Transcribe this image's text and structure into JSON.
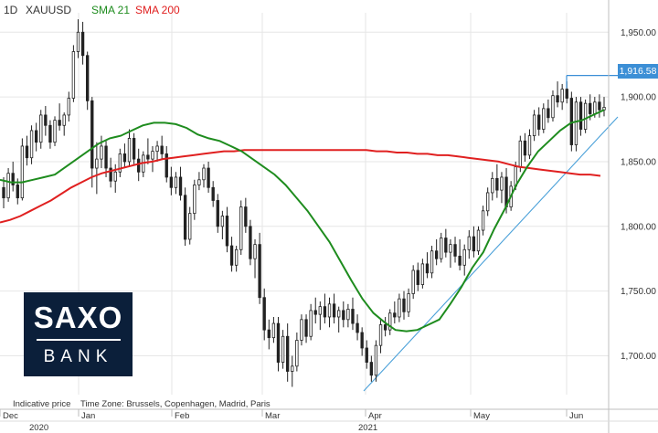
{
  "chart_data": {
    "type": "candlestick",
    "timeframe": "1D",
    "symbol": "XAUUSD",
    "indicators": [
      {
        "name": "SMA 21",
        "color": "#1e8c1e"
      },
      {
        "name": "SMA 200",
        "color": "#e02020"
      }
    ],
    "x_axis": {
      "month_labels": [
        "Dec",
        "Jan",
        "Feb",
        "Mar",
        "Apr",
        "May",
        "Jun"
      ],
      "year_labels": [
        "2020",
        "2021"
      ]
    },
    "y_axis": {
      "range": [
        1670,
        1965
      ],
      "tick_labels": [
        "1,950.00",
        "1,900.00",
        "1,850.00",
        "1,800.00",
        "1,750.00",
        "1,700.00"
      ],
      "tick_values": [
        1950,
        1900,
        1850,
        1800,
        1750,
        1700
      ]
    },
    "current_price_label": "1,916.58",
    "current_price": 1916.58,
    "candles": [
      [
        1830,
        1838,
        1814,
        1822
      ],
      [
        1822,
        1845,
        1819,
        1841
      ],
      [
        1841,
        1850,
        1827,
        1832
      ],
      [
        1832,
        1837,
        1817,
        1822
      ],
      [
        1822,
        1868,
        1820,
        1862
      ],
      [
        1862,
        1870,
        1847,
        1853
      ],
      [
        1853,
        1878,
        1848,
        1874
      ],
      [
        1874,
        1880,
        1858,
        1865
      ],
      [
        1865,
        1890,
        1860,
        1886
      ],
      [
        1886,
        1893,
        1870,
        1878
      ],
      [
        1878,
        1882,
        1860,
        1865
      ],
      [
        1865,
        1885,
        1862,
        1882
      ],
      [
        1882,
        1895,
        1874,
        1878
      ],
      [
        1878,
        1888,
        1870,
        1886
      ],
      [
        1886,
        1904,
        1881,
        1899
      ],
      [
        1899,
        1940,
        1896,
        1935
      ],
      [
        1935,
        1960,
        1930,
        1950
      ],
      [
        1950,
        1958,
        1925,
        1932
      ],
      [
        1932,
        1935,
        1890,
        1897
      ],
      [
        1897,
        1900,
        1830,
        1845
      ],
      [
        1845,
        1865,
        1825,
        1852
      ],
      [
        1852,
        1870,
        1845,
        1862
      ],
      [
        1862,
        1866,
        1838,
        1845
      ],
      [
        1845,
        1853,
        1830,
        1835
      ],
      [
        1835,
        1848,
        1826,
        1842
      ],
      [
        1842,
        1860,
        1838,
        1856
      ],
      [
        1856,
        1864,
        1845,
        1850
      ],
      [
        1850,
        1875,
        1846,
        1868
      ],
      [
        1868,
        1872,
        1848,
        1852
      ],
      [
        1852,
        1860,
        1835,
        1842
      ],
      [
        1842,
        1858,
        1838,
        1855
      ],
      [
        1855,
        1868,
        1848,
        1852
      ],
      [
        1852,
        1862,
        1842,
        1858
      ],
      [
        1858,
        1866,
        1850,
        1862
      ],
      [
        1862,
        1870,
        1852,
        1856
      ],
      [
        1856,
        1862,
        1834,
        1838
      ],
      [
        1838,
        1846,
        1824,
        1830
      ],
      [
        1830,
        1842,
        1825,
        1838
      ],
      [
        1838,
        1846,
        1820,
        1824
      ],
      [
        1824,
        1830,
        1785,
        1790
      ],
      [
        1790,
        1815,
        1786,
        1810
      ],
      [
        1810,
        1836,
        1805,
        1832
      ],
      [
        1832,
        1842,
        1828,
        1836
      ],
      [
        1836,
        1848,
        1830,
        1845
      ],
      [
        1845,
        1850,
        1826,
        1830
      ],
      [
        1830,
        1835,
        1815,
        1820
      ],
      [
        1820,
        1825,
        1795,
        1800
      ],
      [
        1800,
        1812,
        1790,
        1808
      ],
      [
        1808,
        1815,
        1780,
        1785
      ],
      [
        1785,
        1792,
        1765,
        1770
      ],
      [
        1770,
        1785,
        1765,
        1782
      ],
      [
        1782,
        1820,
        1778,
        1815
      ],
      [
        1815,
        1822,
        1795,
        1800
      ],
      [
        1800,
        1805,
        1770,
        1775
      ],
      [
        1775,
        1790,
        1760,
        1786
      ],
      [
        1786,
        1795,
        1740,
        1745
      ],
      [
        1745,
        1752,
        1712,
        1720
      ],
      [
        1720,
        1728,
        1705,
        1714
      ],
      [
        1714,
        1730,
        1710,
        1725
      ],
      [
        1725,
        1730,
        1688,
        1695
      ],
      [
        1695,
        1720,
        1690,
        1715
      ],
      [
        1715,
        1725,
        1680,
        1688
      ],
      [
        1688,
        1700,
        1676,
        1692
      ],
      [
        1692,
        1718,
        1688,
        1712
      ],
      [
        1712,
        1732,
        1708,
        1728
      ],
      [
        1728,
        1732,
        1710,
        1715
      ],
      [
        1715,
        1740,
        1712,
        1735
      ],
      [
        1735,
        1745,
        1725,
        1732
      ],
      [
        1732,
        1742,
        1720,
        1738
      ],
      [
        1738,
        1748,
        1725,
        1730
      ],
      [
        1730,
        1745,
        1722,
        1740
      ],
      [
        1740,
        1748,
        1725,
        1730
      ],
      [
        1730,
        1738,
        1718,
        1735
      ],
      [
        1735,
        1742,
        1722,
        1728
      ],
      [
        1728,
        1740,
        1722,
        1736
      ],
      [
        1736,
        1745,
        1720,
        1725
      ],
      [
        1725,
        1732,
        1712,
        1718
      ],
      [
        1718,
        1722,
        1700,
        1706
      ],
      [
        1706,
        1712,
        1690,
        1695
      ],
      [
        1695,
        1700,
        1680,
        1685
      ],
      [
        1685,
        1712,
        1680,
        1708
      ],
      [
        1708,
        1728,
        1702,
        1724
      ],
      [
        1724,
        1730,
        1715,
        1720
      ],
      [
        1720,
        1736,
        1716,
        1733
      ],
      [
        1733,
        1742,
        1725,
        1730
      ],
      [
        1730,
        1748,
        1726,
        1744
      ],
      [
        1744,
        1750,
        1728,
        1734
      ],
      [
        1734,
        1752,
        1730,
        1748
      ],
      [
        1748,
        1770,
        1744,
        1766
      ],
      [
        1766,
        1772,
        1750,
        1755
      ],
      [
        1755,
        1775,
        1752,
        1771
      ],
      [
        1771,
        1780,
        1760,
        1764
      ],
      [
        1764,
        1785,
        1760,
        1781
      ],
      [
        1781,
        1790,
        1770,
        1775
      ],
      [
        1775,
        1795,
        1772,
        1791
      ],
      [
        1791,
        1798,
        1776,
        1780
      ],
      [
        1780,
        1790,
        1768,
        1786
      ],
      [
        1786,
        1792,
        1772,
        1777
      ],
      [
        1777,
        1790,
        1766,
        1770
      ],
      [
        1770,
        1786,
        1762,
        1782
      ],
      [
        1782,
        1797,
        1775,
        1792
      ],
      [
        1792,
        1800,
        1776,
        1781
      ],
      [
        1781,
        1800,
        1778,
        1797
      ],
      [
        1797,
        1816,
        1793,
        1812
      ],
      [
        1812,
        1830,
        1808,
        1826
      ],
      [
        1826,
        1842,
        1820,
        1837
      ],
      [
        1837,
        1848,
        1822,
        1828
      ],
      [
        1828,
        1842,
        1818,
        1838
      ],
      [
        1838,
        1845,
        1810,
        1815
      ],
      [
        1815,
        1835,
        1812,
        1831
      ],
      [
        1831,
        1850,
        1828,
        1846
      ],
      [
        1846,
        1870,
        1842,
        1866
      ],
      [
        1866,
        1872,
        1850,
        1855
      ],
      [
        1855,
        1875,
        1852,
        1870
      ],
      [
        1870,
        1890,
        1866,
        1886
      ],
      [
        1886,
        1892,
        1870,
        1875
      ],
      [
        1875,
        1895,
        1872,
        1891
      ],
      [
        1891,
        1898,
        1880,
        1884
      ],
      [
        1884,
        1905,
        1881,
        1901
      ],
      [
        1901,
        1912,
        1892,
        1896
      ],
      [
        1896,
        1910,
        1890,
        1906
      ],
      [
        1906,
        1912,
        1895,
        1899
      ],
      [
        1899,
        1904,
        1858,
        1863
      ],
      [
        1863,
        1900,
        1858,
        1896
      ],
      [
        1896,
        1900,
        1870,
        1875
      ],
      [
        1875,
        1898,
        1872,
        1895
      ],
      [
        1895,
        1902,
        1882,
        1887
      ],
      [
        1887,
        1900,
        1884,
        1896
      ],
      [
        1896,
        1902,
        1884,
        1890
      ],
      [
        1890,
        1900,
        1885,
        1892
      ]
    ],
    "sma21": [
      1836,
      1834,
      1834,
      1836,
      1838,
      1840,
      1846,
      1852,
      1858,
      1864,
      1868,
      1870,
      1874,
      1878,
      1880,
      1880,
      1879,
      1876,
      1871,
      1868,
      1866,
      1862,
      1858,
      1852,
      1846,
      1840,
      1832,
      1822,
      1812,
      1800,
      1788,
      1773,
      1758,
      1744,
      1733,
      1726,
      1720,
      1719,
      1720,
      1724,
      1728,
      1740,
      1753,
      1768,
      1780,
      1798,
      1814,
      1832,
      1846,
      1858,
      1866,
      1874,
      1880,
      1882,
      1886,
      1890
    ],
    "sma200": [
      1803,
      1805,
      1808,
      1812,
      1816,
      1820,
      1825,
      1830,
      1834,
      1838,
      1841,
      1843,
      1845,
      1847,
      1849,
      1850,
      1852,
      1853,
      1854,
      1855,
      1856,
      1857,
      1858,
      1858,
      1859,
      1859,
      1859,
      1859,
      1859,
      1859,
      1859,
      1859,
      1859,
      1859,
      1859,
      1859,
      1859,
      1858,
      1858,
      1857,
      1857,
      1856,
      1856,
      1855,
      1855,
      1854,
      1853,
      1852,
      1851,
      1850,
      1848,
      1846,
      1845,
      1844,
      1843,
      1842,
      1841,
      1840,
      1840,
      1839
    ]
  },
  "footer": {
    "note_left": "Indicative price",
    "note_timezone": "Time Zone: Brussels, Copenhagen, Madrid, Paris"
  },
  "logo": {
    "top": "SAXO",
    "bottom": "BANK"
  }
}
